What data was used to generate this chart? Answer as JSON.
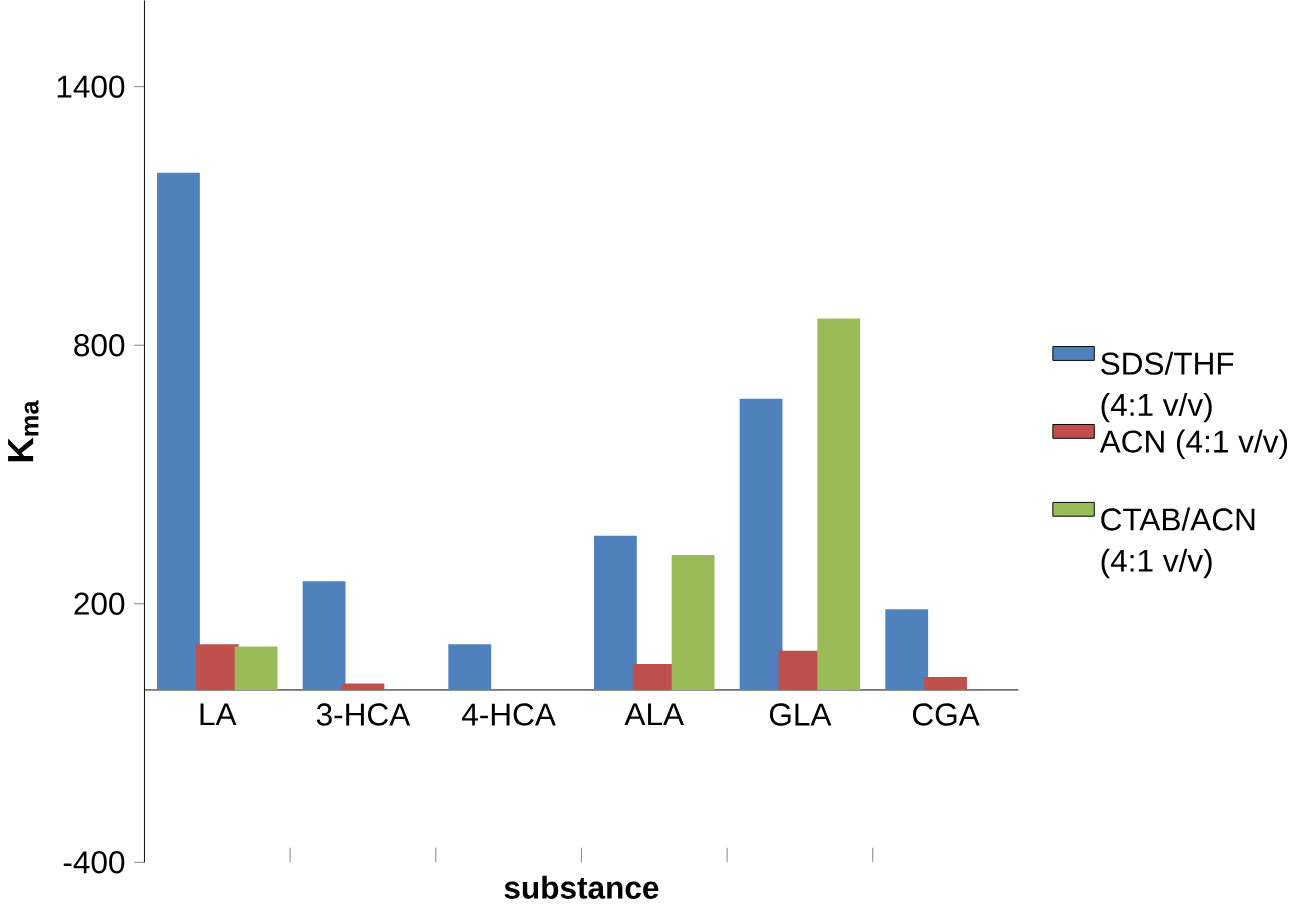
{
  "chart_data": {
    "type": "bar",
    "xlabel": "substance",
    "ylabel": "K$_{ma}$",
    "categories": [
      "LA",
      "3-HCA",
      "4-HCA",
      "ALA",
      "GLA",
      "CGA"
    ],
    "series": [
      {
        "name": "SDS/THF (4:1 v/v)",
        "color": "#4f81bd",
        "values": [
          1200,
          252,
          106,
          358,
          676,
          187
        ]
      },
      {
        "name": "ACN (4:1 v/v)",
        "color": "#c0504d",
        "values": [
          106,
          15,
          0,
          60,
          91,
          30
        ]
      },
      {
        "name": "CTAB/ACN (4:1 v/v)",
        "color": "#9bbb59",
        "values": [
          101,
          0,
          0,
          313,
          862,
          0
        ]
      }
    ],
    "ylim": [
      -400,
      1600
    ],
    "yticks": [
      -400,
      200,
      800,
      1400
    ],
    "grid": false,
    "legend": "right"
  }
}
